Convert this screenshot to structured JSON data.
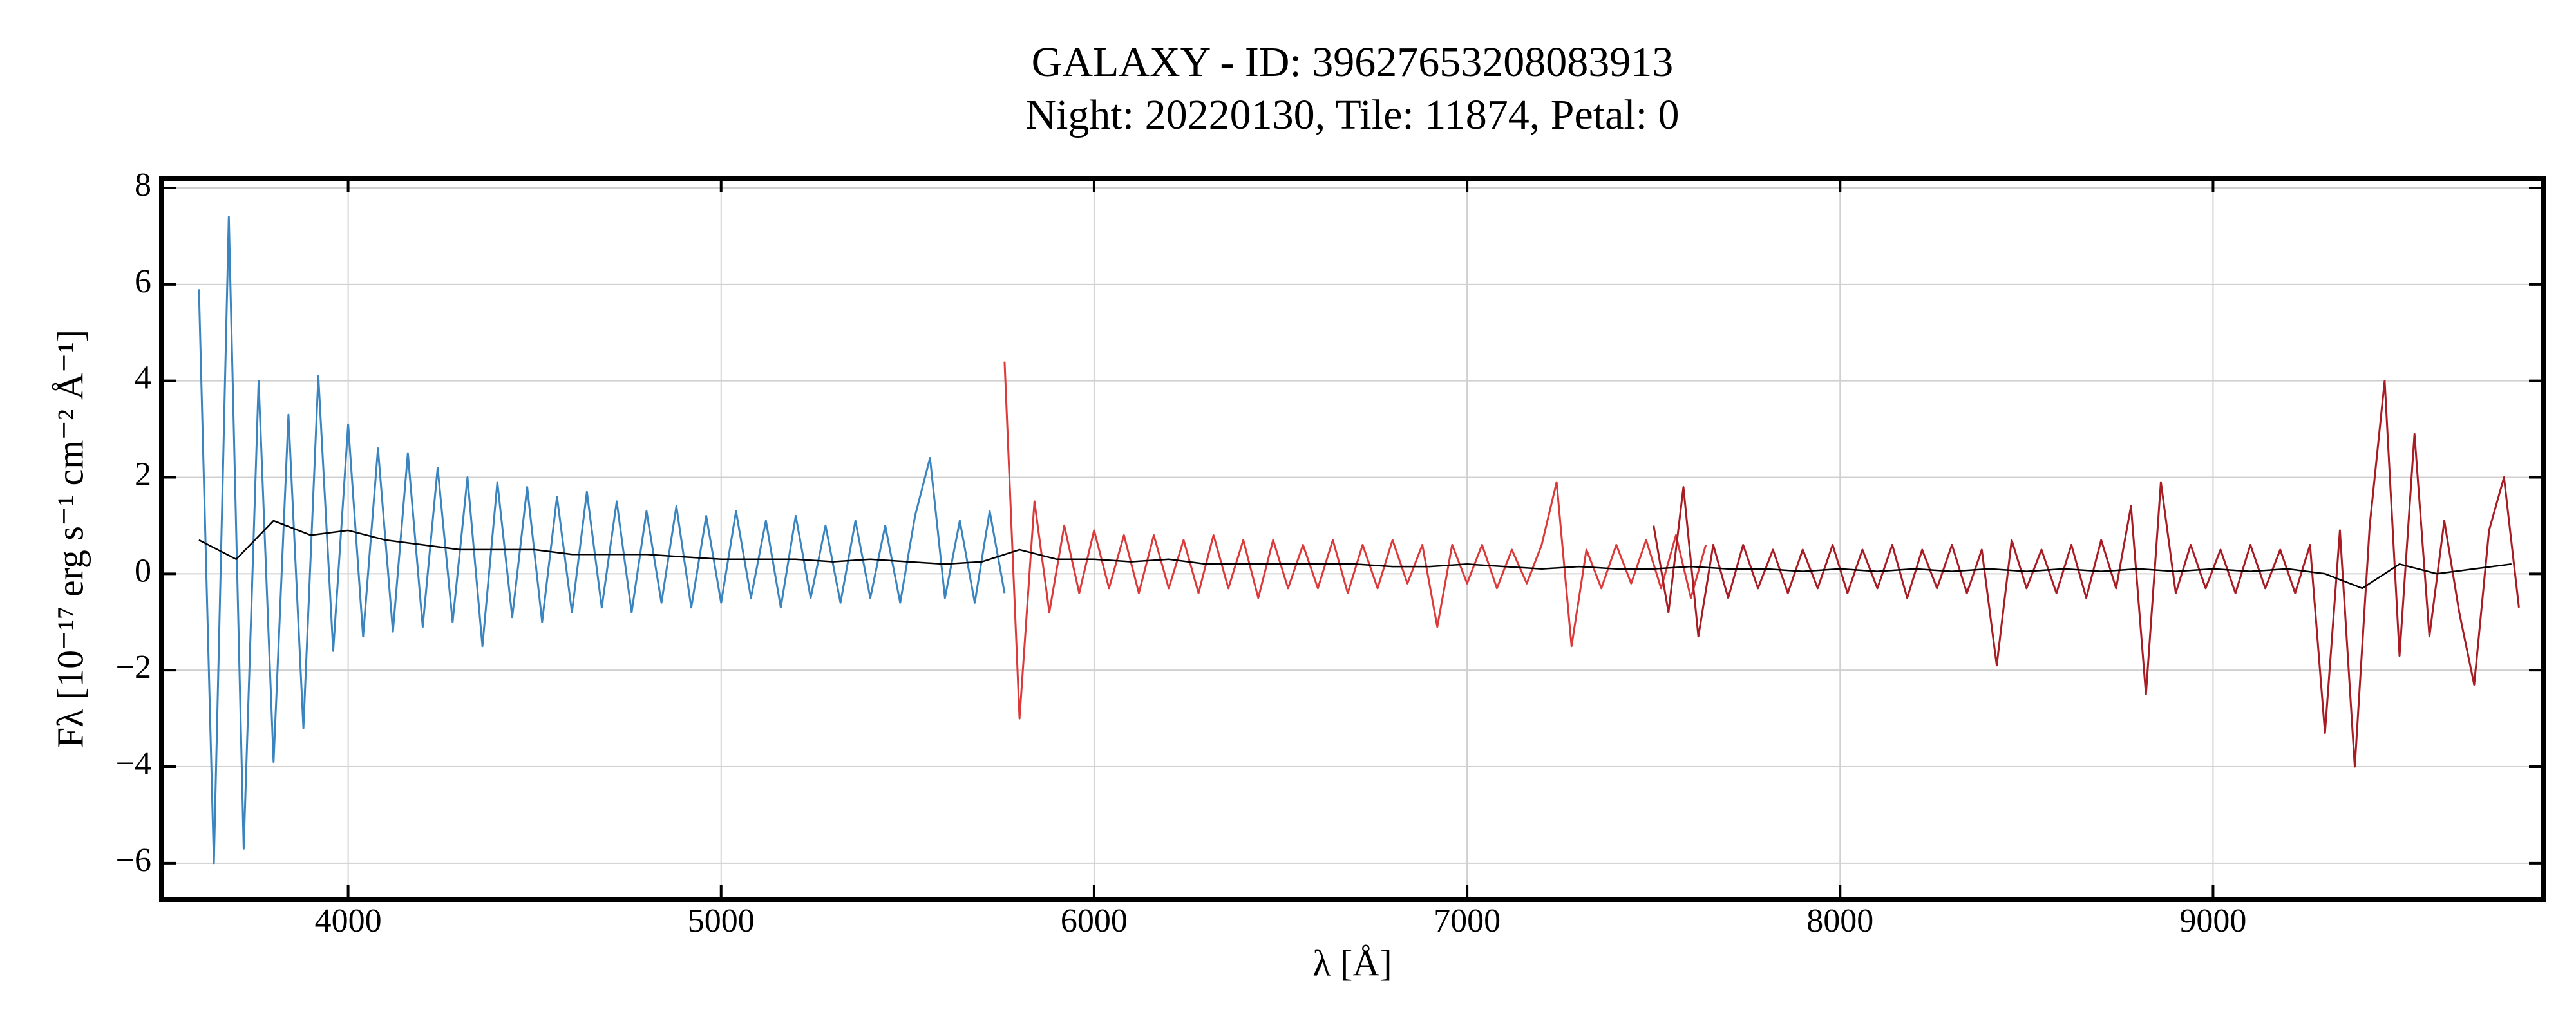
{
  "chart_data": {
    "type": "line",
    "title": "GALAXY - ID: 39627653208083913",
    "subtitle": "Night: 20220130, Tile: 11874, Petal: 0",
    "x_label": "λ [Å]",
    "y_label": "Fλ [10⁻¹⁷ erg s⁻¹ cm⁻² Å⁻¹]",
    "xlim": [
      3500,
      9885
    ],
    "ylim": [
      -6.75,
      8.2
    ],
    "xticks": [
      4000,
      5000,
      6000,
      7000,
      8000,
      9000
    ],
    "yticks": [
      {
        "value": -6,
        "label": "−6"
      },
      {
        "value": -4,
        "label": "−4"
      },
      {
        "value": -2,
        "label": "−2"
      },
      0,
      2,
      4,
      6,
      8
    ],
    "grid": true,
    "series": [
      {
        "color": "#3a85c0",
        "x": [
          3600,
          3640,
          3680,
          3720,
          3760,
          3800,
          3840,
          3880,
          3920,
          3960,
          4000,
          4040,
          4080,
          4120,
          4160,
          4200,
          4240,
          4280,
          4320,
          4360,
          4400,
          4440,
          4480,
          4520,
          4560,
          4600,
          4640,
          4680,
          4720,
          4760,
          4800,
          4840,
          4880,
          4920,
          4960,
          5000,
          5040,
          5080,
          5120,
          5160,
          5200,
          5240,
          5280,
          5320,
          5360,
          5400,
          5440,
          5480,
          5520,
          5560,
          5600,
          5640,
          5680,
          5720,
          5760
        ],
        "values": [
          5.9,
          -6.0,
          7.4,
          -5.7,
          4.0,
          -3.9,
          3.3,
          -3.2,
          4.1,
          -1.6,
          3.1,
          -1.3,
          2.6,
          -1.2,
          2.5,
          -1.1,
          2.2,
          -1.0,
          2.0,
          -1.5,
          1.9,
          -0.9,
          1.8,
          -1.0,
          1.6,
          -0.8,
          1.7,
          -0.7,
          1.5,
          -0.8,
          1.3,
          -0.6,
          1.4,
          -0.7,
          1.2,
          -0.6,
          1.3,
          -0.5,
          1.1,
          -0.7,
          1.2,
          -0.5,
          1.0,
          -0.6,
          1.1,
          -0.5,
          1.0,
          -0.6,
          1.2,
          2.4,
          -0.5,
          1.1,
          -0.6,
          1.3,
          -0.4
        ]
      },
      {
        "color": "#dc3a3a",
        "x": [
          5760,
          5800,
          5840,
          5880,
          5920,
          5960,
          6000,
          6040,
          6080,
          6120,
          6160,
          6200,
          6240,
          6280,
          6320,
          6360,
          6400,
          6440,
          6480,
          6520,
          6560,
          6600,
          6640,
          6680,
          6720,
          6760,
          6800,
          6840,
          6880,
          6920,
          6960,
          7000,
          7040,
          7080,
          7120,
          7160,
          7200,
          7240,
          7280,
          7320,
          7360,
          7400,
          7440,
          7480,
          7520,
          7560,
          7600,
          7640
        ],
        "values": [
          4.4,
          -3.0,
          1.5,
          -0.8,
          1.0,
          -0.4,
          0.9,
          -0.3,
          0.8,
          -0.4,
          0.8,
          -0.3,
          0.7,
          -0.4,
          0.8,
          -0.3,
          0.7,
          -0.5,
          0.7,
          -0.3,
          0.6,
          -0.3,
          0.7,
          -0.4,
          0.6,
          -0.3,
          0.7,
          -0.2,
          0.6,
          -1.1,
          0.6,
          -0.2,
          0.6,
          -0.3,
          0.5,
          -0.2,
          0.6,
          1.9,
          -1.5,
          0.5,
          -0.3,
          0.6,
          -0.2,
          0.7,
          -0.3,
          0.8,
          -0.5,
          0.6
        ]
      },
      {
        "color": "#a81c24",
        "x": [
          7500,
          7540,
          7580,
          7620,
          7660,
          7700,
          7740,
          7780,
          7820,
          7860,
          7900,
          7940,
          7980,
          8020,
          8060,
          8100,
          8140,
          8180,
          8220,
          8260,
          8300,
          8340,
          8380,
          8420,
          8460,
          8500,
          8540,
          8580,
          8620,
          8660,
          8700,
          8740,
          8780,
          8820,
          8860,
          8900,
          8940,
          8980,
          9020,
          9060,
          9100,
          9140,
          9180,
          9220,
          9260,
          9300,
          9340,
          9380,
          9420,
          9460,
          9500,
          9540,
          9580,
          9620,
          9660,
          9700,
          9740,
          9780,
          9820
        ],
        "values": [
          1.0,
          -0.8,
          1.8,
          -1.3,
          0.6,
          -0.5,
          0.6,
          -0.3,
          0.5,
          -0.4,
          0.5,
          -0.3,
          0.6,
          -0.4,
          0.5,
          -0.3,
          0.6,
          -0.5,
          0.5,
          -0.3,
          0.6,
          -0.4,
          0.5,
          -1.9,
          0.7,
          -0.3,
          0.5,
          -0.4,
          0.6,
          -0.5,
          0.7,
          -0.3,
          1.4,
          -2.5,
          1.9,
          -0.4,
          0.6,
          -0.3,
          0.5,
          -0.4,
          0.6,
          -0.3,
          0.5,
          -0.4,
          0.6,
          -3.3,
          0.9,
          -4.0,
          1.0,
          4.0,
          -1.7,
          2.9,
          -1.3,
          1.1,
          -0.8,
          -2.3,
          0.9,
          2.0,
          -0.7
        ]
      },
      {
        "color": "#000000",
        "x": [
          3600,
          3700,
          3800,
          3900,
          4000,
          4100,
          4200,
          4300,
          4400,
          4500,
          4600,
          4700,
          4800,
          4900,
          5000,
          5100,
          5200,
          5300,
          5400,
          5500,
          5600,
          5700,
          5800,
          5900,
          6000,
          6100,
          6200,
          6300,
          6400,
          6500,
          6600,
          6700,
          6800,
          6900,
          7000,
          7100,
          7200,
          7300,
          7400,
          7500,
          7600,
          7700,
          7800,
          7900,
          8000,
          8100,
          8200,
          8300,
          8400,
          8500,
          8600,
          8700,
          8800,
          8900,
          9000,
          9100,
          9200,
          9300,
          9400,
          9500,
          9600,
          9700,
          9800
        ],
        "values": [
          0.7,
          0.3,
          1.1,
          0.8,
          0.9,
          0.7,
          0.6,
          0.5,
          0.5,
          0.5,
          0.4,
          0.4,
          0.4,
          0.35,
          0.3,
          0.3,
          0.3,
          0.25,
          0.3,
          0.25,
          0.2,
          0.25,
          0.5,
          0.3,
          0.3,
          0.25,
          0.3,
          0.2,
          0.2,
          0.2,
          0.2,
          0.2,
          0.15,
          0.15,
          0.2,
          0.15,
          0.1,
          0.15,
          0.1,
          0.1,
          0.15,
          0.1,
          0.1,
          0.05,
          0.1,
          0.05,
          0.1,
          0.05,
          0.1,
          0.05,
          0.1,
          0.05,
          0.1,
          0.05,
          0.1,
          0.05,
          0.1,
          0.0,
          -0.3,
          0.2,
          0.0,
          0.1,
          0.2
        ]
      }
    ]
  }
}
